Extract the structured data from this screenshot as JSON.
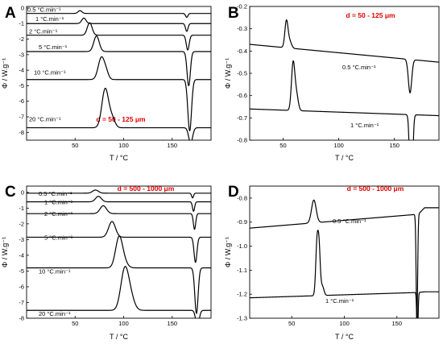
{
  "chart_data": [
    {
      "type": "line",
      "panel": "A",
      "xlabel": "T  /  °C",
      "ylabel": "Φ  /  W.g⁻¹",
      "xlim": [
        0,
        190
      ],
      "ylim": [
        -8.5,
        0.1
      ],
      "xticks": [
        "50",
        "100",
        "150"
      ],
      "yticks": [
        "0",
        "-1",
        "-2",
        "-3",
        "-4",
        "-5",
        "-6",
        "-7",
        "-8"
      ],
      "annotation": "d = 50 - 125 μm",
      "series": [
        {
          "name": "0.5 °C.min⁻¹",
          "baseline": -0.35,
          "peaks": [
            {
              "center": 55,
              "width": 2.0,
              "height": 0.18
            }
          ],
          "dip": {
            "center": 165,
            "width": 1.2,
            "depth": 0.25
          }
        },
        {
          "name": "1 °C.min⁻¹",
          "baseline": -1.0,
          "peaks": [
            {
              "center": 59,
              "width": 2.2,
              "height": 0.35
            }
          ],
          "dip": {
            "center": 165,
            "width": 1.3,
            "depth": 0.5
          }
        },
        {
          "name": "2 °C.min⁻¹",
          "baseline": -1.75,
          "peaks": [
            {
              "center": 65,
              "width": 2.5,
              "height": 0.8
            }
          ],
          "dip": {
            "center": 166,
            "width": 1.5,
            "depth": 0.95
          }
        },
        {
          "name": "5 °C.min⁻¹",
          "baseline": -2.8,
          "peaks": [
            {
              "center": 72,
              "width": 2.8,
              "height": 1.0
            }
          ],
          "dip": {
            "center": 167,
            "width": 1.7,
            "depth": 2.2
          }
        },
        {
          "name": "10 °C.min⁻¹",
          "baseline": -4.6,
          "peaks": [
            {
              "center": 77,
              "width": 3.2,
              "height": 1.4
            },
            {
              "center": 82,
              "width": 2.5,
              "height": 0.4
            }
          ],
          "dip": {
            "center": 168,
            "width": 1.9,
            "depth": 3.3
          }
        },
        {
          "name": "20 °C.min⁻¹",
          "baseline": -7.7,
          "peaks": [
            {
              "center": 81,
              "width": 3.4,
              "height": 2.5
            },
            {
              "center": 88,
              "width": 3.0,
              "height": 0.6
            }
          ],
          "dip": {
            "center": 169,
            "width": 2.0,
            "depth": 1.0
          }
        }
      ]
    },
    {
      "type": "line",
      "panel": "B",
      "xlabel": "T  /  °C",
      "ylabel": "Φ  /  W.g⁻¹",
      "xlim": [
        20,
        190
      ],
      "ylim": [
        -0.8,
        -0.2
      ],
      "xticks": [
        "50",
        "100",
        "150"
      ],
      "yticks": [
        "-0.2",
        "-0.3",
        "-0.4",
        "-0.5",
        "-0.6",
        "-0.7",
        "-0.8"
      ],
      "annotation": "d = 50 - 125 μm",
      "series": [
        {
          "name": "0.5 °C.min⁻¹",
          "baseline_start": -0.37,
          "baseline_end": -0.45,
          "peaks": [
            {
              "center": 53,
              "width": 1.4,
              "height": 0.12
            },
            {
              "center": 56,
              "width": 1.6,
              "height": 0.03
            }
          ],
          "dip": {
            "center": 164,
            "width": 1.5,
            "depth": 0.15
          }
        },
        {
          "name": "1 °C.min⁻¹",
          "baseline_start": -0.66,
          "baseline_end": -0.69,
          "peaks": [
            {
              "center": 59,
              "width": 1.5,
              "height": 0.21
            },
            {
              "center": 62,
              "width": 1.6,
              "height": 0.07
            }
          ],
          "dip": {
            "center": 165,
            "width": 1.2,
            "depth": 0.5
          }
        }
      ]
    },
    {
      "type": "line",
      "panel": "C",
      "xlabel": "T  /  °C",
      "ylabel": "Φ  /  W.g⁻¹",
      "xlim": [
        0,
        190
      ],
      "ylim": [
        -8.0,
        0.4
      ],
      "xticks": [
        "50",
        "100",
        "150"
      ],
      "yticks": [
        "0",
        "-1",
        "-2",
        "-3",
        "-4",
        "-5",
        "-6",
        "-7",
        "-8"
      ],
      "annotation": "d = 500 - 1000 μm",
      "series": [
        {
          "name": "0.5 °C.min⁻¹",
          "baseline": -0.05,
          "peaks": [
            {
              "center": 71,
              "width": 3.0,
              "height": 0.2
            }
          ],
          "dip": {
            "center": 171,
            "width": 1.0,
            "depth": 0.3
          }
        },
        {
          "name": "1 °C.min⁻¹",
          "baseline": -0.6,
          "peaks": [
            {
              "center": 74,
              "width": 3.0,
              "height": 0.35
            }
          ],
          "dip": {
            "center": 172,
            "width": 1.1,
            "depth": 0.6
          }
        },
        {
          "name": "2 °C.min⁻¹",
          "baseline": -1.35,
          "peaks": [
            {
              "center": 79,
              "width": 3.3,
              "height": 0.5
            }
          ],
          "dip": {
            "center": 173,
            "width": 1.2,
            "depth": 1.0
          }
        },
        {
          "name": "5 °C.min⁻¹",
          "baseline": -2.85,
          "peaks": [
            {
              "center": 88,
              "width": 3.5,
              "height": 1.0
            }
          ],
          "dip": {
            "center": 174,
            "width": 1.5,
            "depth": 1.6
          }
        },
        {
          "name": "10 °C.min⁻¹",
          "baseline": -4.8,
          "peaks": [
            {
              "center": 95,
              "width": 3.5,
              "height": 1.7
            },
            {
              "center": 99,
              "width": 4.0,
              "height": 0.5
            }
          ],
          "dip": {
            "center": 175,
            "width": 1.7,
            "depth": 2.9
          }
        },
        {
          "name": "20 °C.min⁻¹",
          "baseline": -7.5,
          "peaks": [
            {
              "center": 101,
              "width": 4.0,
              "height": 2.5
            },
            {
              "center": 107,
              "width": 4.0,
              "height": 0.8
            }
          ],
          "dip": {
            "center": 176,
            "width": 1.8,
            "depth": 1.0
          }
        }
      ]
    },
    {
      "type": "line",
      "panel": "D",
      "xlabel": "T  /  °C",
      "ylabel": "Φ  /  W.g⁻¹",
      "xlim": [
        10,
        190
      ],
      "ylim": [
        -1.3,
        -0.75
      ],
      "xticks": [
        "50",
        "100",
        "150"
      ],
      "yticks": [
        "-0.8",
        "-0.9",
        "-1.0",
        "-1.1",
        "-1.2",
        "-1.3"
      ],
      "annotation": "d = 500 - 1000 μm",
      "series": [
        {
          "name": "0.5 °C.min⁻¹",
          "baseline_start": -0.925,
          "baseline_end": -0.86,
          "peaks": [
            {
              "center": 71,
              "width": 2.2,
              "height": 0.095
            }
          ],
          "dip": {
            "center": 169,
            "width": 0.7,
            "depth": 0.45
          },
          "tail": -0.84
        },
        {
          "name": "1 °C.min⁻¹",
          "baseline_start": -1.215,
          "baseline_end": -1.19,
          "peaks": [
            {
              "center": 74,
              "width": 1.2,
              "height": 0.215
            },
            {
              "center": 76,
              "width": 1.1,
              "height": 0.18
            },
            {
              "center": 79,
              "width": 1.5,
              "height": 0.04
            }
          ],
          "dip": {
            "center": 169.5,
            "width": 0.6,
            "depth": 0.2
          },
          "tail": -1.19
        }
      ]
    }
  ]
}
